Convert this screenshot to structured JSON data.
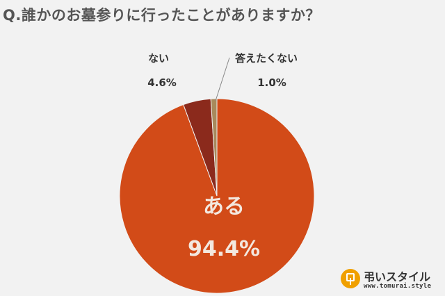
{
  "title": "Q.誰かのお墓参りに行ったことがありますか？",
  "brand": {
    "name": "弔いスタイル",
    "url": "www.tomurai.style",
    "accent": "#f0a000"
  },
  "chart_data": {
    "type": "pie",
    "slices": [
      {
        "label": "ある",
        "value": 94.4,
        "value_label": "94.4%",
        "color": "#d24b18"
      },
      {
        "label": "ない",
        "value": 4.6,
        "value_label": "4.6%",
        "color": "#8b2a1c"
      },
      {
        "label": "答えたくない",
        "value": 1.0,
        "value_label": "1.0%",
        "color": "#a88a5c"
      }
    ]
  }
}
